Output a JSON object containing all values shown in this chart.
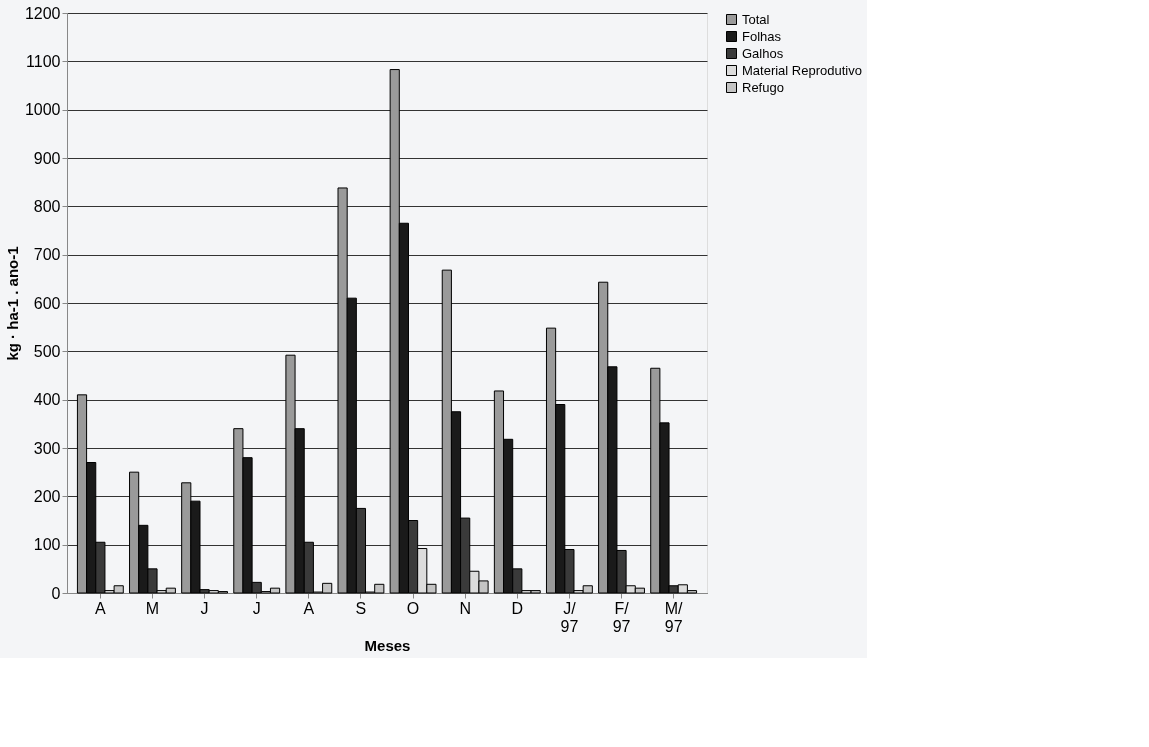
{
  "chart_data": {
    "type": "bar",
    "xlabel": "Meses",
    "ylabel": "kg · ha-1 . ano-1",
    "categories": [
      "A",
      "M",
      "J",
      "J",
      "A",
      "S",
      "O",
      "N",
      "D",
      "J/97",
      "F/97",
      "M/97"
    ],
    "series": [
      {
        "name": "Total",
        "color": "#9a9a9a",
        "values": [
          410,
          250,
          228,
          340,
          492,
          838,
          1083,
          668,
          418,
          548,
          643,
          465
        ]
      },
      {
        "name": "Folhas",
        "color": "#1a1a1a",
        "values": [
          270,
          140,
          190,
          280,
          340,
          610,
          765,
          375,
          318,
          390,
          468,
          352
        ]
      },
      {
        "name": "Galhos",
        "color": "#3a3a3a",
        "values": [
          105,
          50,
          7,
          22,
          105,
          175,
          150,
          155,
          50,
          90,
          88,
          15
        ]
      },
      {
        "name": "Material Reprodutivo",
        "color": "#dcdcdc",
        "values": [
          5,
          5,
          5,
          3,
          2,
          2,
          92,
          45,
          5,
          5,
          15,
          17
        ]
      },
      {
        "name": "Refugo",
        "color": "#c4c4c4",
        "values": [
          15,
          10,
          3,
          10,
          20,
          18,
          18,
          25,
          5,
          15,
          10,
          5
        ]
      }
    ],
    "ylim": [
      0,
      1200
    ],
    "yticks": [
      0,
      100,
      200,
      300,
      400,
      500,
      600,
      700,
      800,
      900,
      1000,
      1100,
      1200
    ],
    "grid": "y",
    "legend": "top right"
  }
}
